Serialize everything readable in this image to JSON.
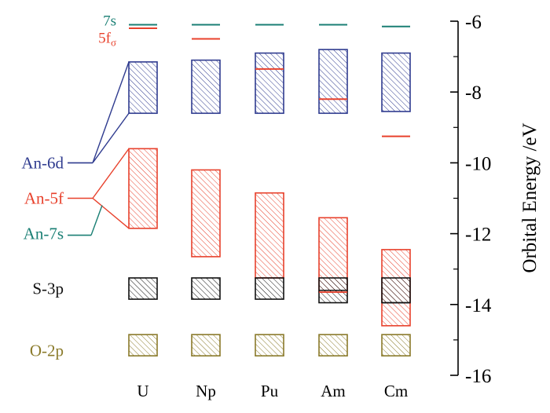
{
  "chart_data": {
    "type": "energy-level-diagram",
    "ylabel": "Orbital Energy /eV",
    "ylim": [
      -16,
      -6
    ],
    "yticks": [
      -6,
      -8,
      -10,
      -12,
      -14,
      -16
    ],
    "ytick_labels": [
      "-6",
      "-8",
      "-10",
      "-12",
      "-14",
      "-16"
    ],
    "categories": [
      "U",
      "Np",
      "Pu",
      "Am",
      "Cm"
    ],
    "colors": {
      "An-6d": "#2f3b8f",
      "An-5f": "#e8412c",
      "An-7s": "#1a7f74",
      "S-3p": "#111111",
      "O-2p": "#8a7a2a"
    },
    "legend": [
      {
        "key": "An-6d",
        "label": "An-6d",
        "fan_level": -10.0
      },
      {
        "key": "An-5f",
        "label": "An-5f",
        "fan_level": -11.0
      },
      {
        "key": "An-7s",
        "label": "An-7s",
        "fan_level": -12.0
      },
      {
        "key": "S-3p",
        "label": "S-3p",
        "fan_level": -13.55
      },
      {
        "key": "O-2p",
        "label": "O-2p",
        "fan_level": -15.3
      }
    ],
    "top_labels": {
      "s7": "7s",
      "f5": "5f",
      "f5_sub": "σ"
    },
    "series": [
      {
        "key": "An-6d",
        "type": "band",
        "bands": [
          [
            -8.6,
            -7.15
          ],
          [
            -8.6,
            -7.1
          ],
          [
            -8.6,
            -6.9
          ],
          [
            -8.6,
            -6.8
          ],
          [
            -8.55,
            -6.9
          ]
        ]
      },
      {
        "key": "An-5f",
        "type": "band",
        "bands": [
          [
            -11.85,
            -9.6
          ],
          [
            -12.65,
            -10.2
          ],
          [
            -13.25,
            -10.85
          ],
          [
            -13.65,
            -11.55
          ],
          [
            -14.6,
            -12.45
          ]
        ]
      },
      {
        "key": "S-3p",
        "type": "band",
        "bands": [
          [
            -13.85,
            -13.25
          ],
          [
            -13.85,
            -13.25
          ],
          [
            -13.85,
            -13.25
          ],
          [
            -13.95,
            -13.25
          ],
          [
            -13.95,
            -13.25
          ]
        ]
      },
      {
        "key": "O-2p",
        "type": "band",
        "bands": [
          [
            -15.45,
            -14.85
          ],
          [
            -15.45,
            -14.85
          ],
          [
            -15.45,
            -14.85
          ],
          [
            -15.45,
            -14.85
          ],
          [
            -15.45,
            -14.85
          ]
        ]
      },
      {
        "key": "An-7s",
        "type": "level",
        "values": [
          -6.1,
          -6.1,
          -6.1,
          -6.1,
          -6.15
        ]
      },
      {
        "key": "An-5f",
        "type": "level",
        "values": [
          -6.2,
          -6.5,
          -7.35,
          -8.2,
          -9.25
        ]
      }
    ],
    "inner_lines": [
      {
        "key": "An-5f",
        "category": 3,
        "value": -13.65
      },
      {
        "key": "S-3p",
        "category": 3,
        "value": -13.6
      },
      {
        "key": "S-3p",
        "category": 4,
        "value": -13.95
      }
    ]
  }
}
